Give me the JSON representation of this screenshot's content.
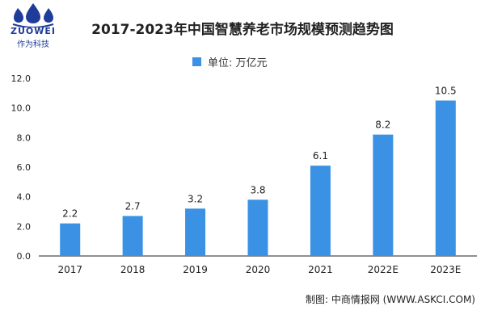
{
  "logo": {
    "brand": "ZUOWEI",
    "brand_cn": "作为科技"
  },
  "source_text": "制图: 中商情报网 (WWW.ASKCI.COM)",
  "colors": {
    "bar": "#3b91e4",
    "axis": "#222222",
    "logo_blue": "#1f3c9a"
  },
  "chart_data": {
    "type": "bar",
    "title": "2017-2023年中国智慧养老市场规模预测趋势图",
    "xlabel": "",
    "ylabel": "",
    "legend": "单位: 万亿元",
    "legend_position": "top-center",
    "grid": false,
    "categories": [
      "2017",
      "2018",
      "2019",
      "2020",
      "2021",
      "2022E",
      "2023E"
    ],
    "values": [
      2.2,
      2.7,
      3.2,
      3.8,
      6.1,
      8.2,
      10.5
    ],
    "value_labels": [
      "2.2",
      "2.7",
      "3.2",
      "3.8",
      "6.1",
      "8.2",
      "10.5"
    ],
    "yticks": [
      "0.0",
      "2.0",
      "4.0",
      "6.0",
      "8.0",
      "10.0",
      "12.0"
    ],
    "ylim": [
      0,
      12
    ]
  }
}
